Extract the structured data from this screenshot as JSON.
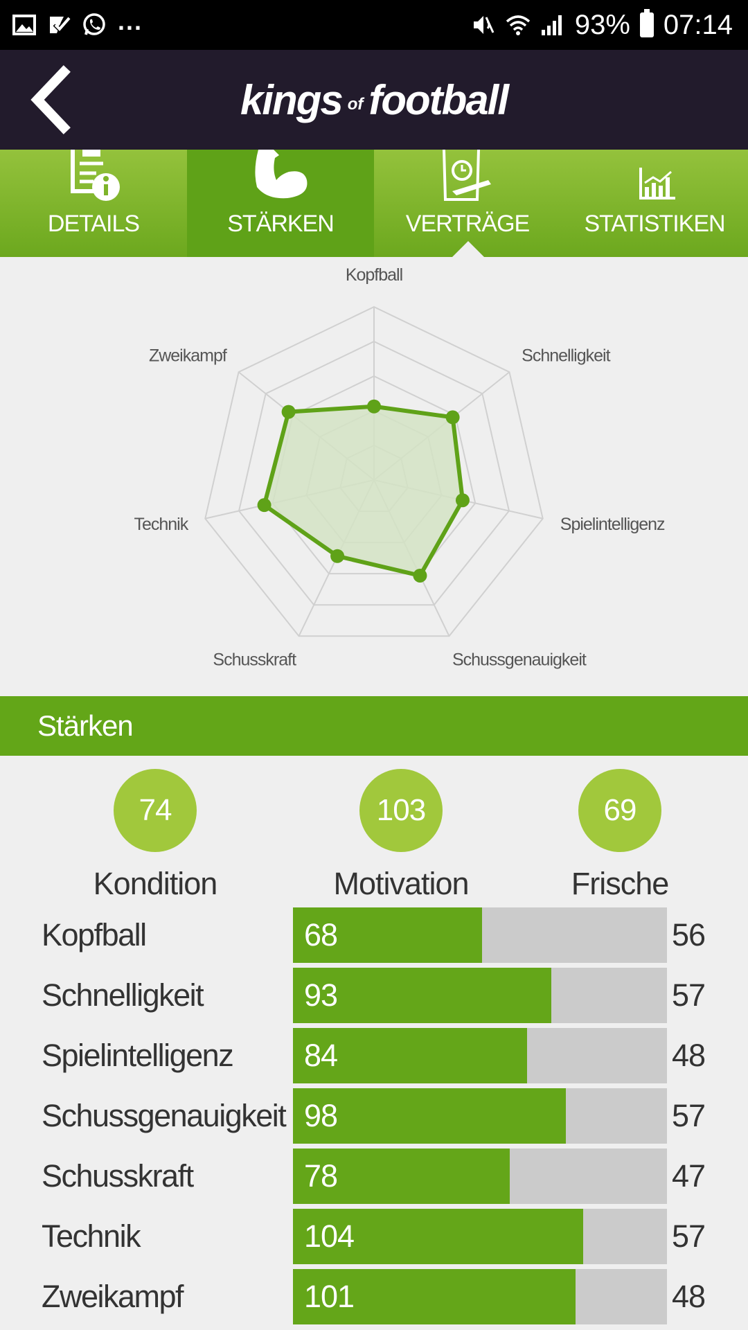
{
  "status_bar": {
    "battery": "93%",
    "time": "07:14",
    "notification_dots": "...",
    "icons": [
      "gallery-icon",
      "check-task-icon",
      "whatsapp-icon",
      "mute-icon",
      "wifi-icon",
      "signal-icon",
      "battery-icon"
    ]
  },
  "header": {
    "logo_kings": "kings",
    "logo_of": "of",
    "logo_football": "football",
    "back_icon": "chevron-left-icon"
  },
  "tabs": [
    {
      "label": "DETAILS",
      "icon": "clipboard-info-icon",
      "active": false
    },
    {
      "label": "STÄRKEN",
      "icon": "flexed-arm-icon",
      "active": true
    },
    {
      "label": "VERTRÄGE",
      "icon": "contract-icon",
      "active": false
    },
    {
      "label": "STATISTIKEN",
      "icon": "bar-chart-icon",
      "active": false
    }
  ],
  "chart_data": {
    "type": "radar",
    "axes": [
      "Kopfball",
      "Schnelligkeit",
      "Spielintelligenz",
      "Schussgenauigkeit",
      "Schusskraft",
      "Technik",
      "Zweikampf"
    ],
    "values": [
      68,
      93,
      84,
      98,
      78,
      104,
      101
    ],
    "range": [
      0,
      160
    ],
    "rings": 5,
    "series_color": "#5fa218",
    "fill_color": "#d4e3c4"
  },
  "section": {
    "title": "Stärken"
  },
  "summary": [
    {
      "value": "74",
      "label": "Kondition"
    },
    {
      "value": "103",
      "label": "Motivation"
    },
    {
      "value": "69",
      "label": "Frische"
    }
  ],
  "skills": [
    {
      "name": "Kopfball",
      "value": "68",
      "max": "56",
      "fill_pct": 50.5
    },
    {
      "name": "Schnelligkeit",
      "value": "93",
      "max": "57",
      "fill_pct": 69.0
    },
    {
      "name": "Spielintelligenz",
      "value": "84",
      "max": "48",
      "fill_pct": 62.5
    },
    {
      "name": "Schussgenauigkeit",
      "value": "98",
      "max": "57",
      "fill_pct": 73.0
    },
    {
      "name": "Schusskraft",
      "value": "78",
      "max": "47",
      "fill_pct": 58.0
    },
    {
      "name": "Technik",
      "value": "104",
      "max": "57",
      "fill_pct": 77.5
    },
    {
      "name": "Zweikampf",
      "value": "101",
      "max": "48",
      "fill_pct": 75.5
    }
  ]
}
